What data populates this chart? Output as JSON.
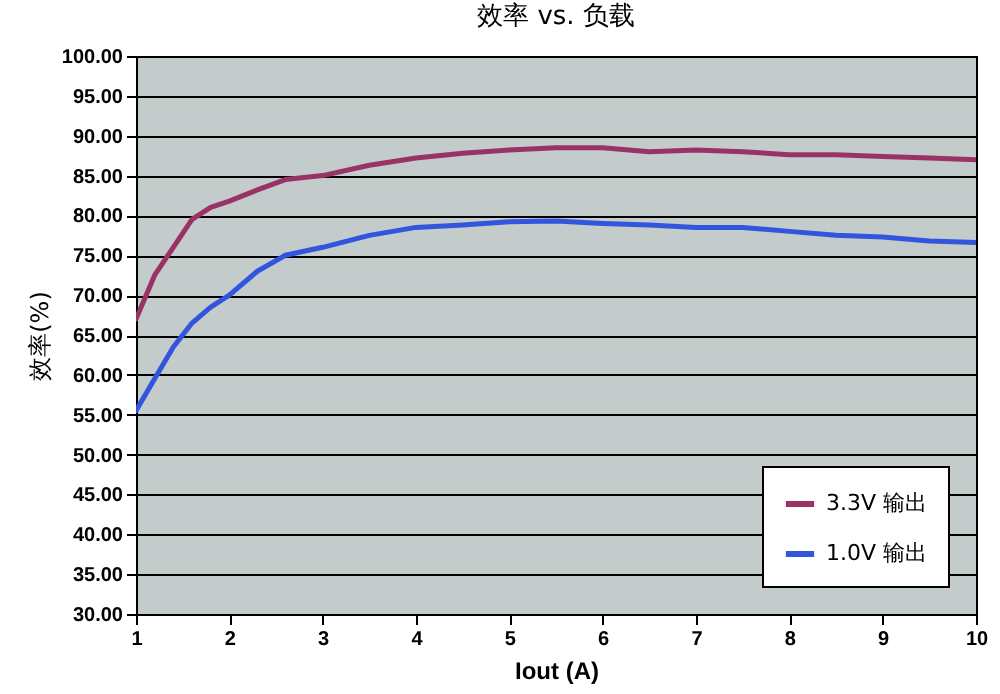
{
  "chart_data": {
    "type": "line",
    "title": "效率 vs. 负载",
    "xlabel": "Iout (A)",
    "ylabel": "效率(%)",
    "xlim": [
      1,
      10
    ],
    "xticks": [
      1,
      2,
      3,
      4,
      5,
      6,
      7,
      8,
      9,
      10
    ],
    "ylim": [
      30,
      100
    ],
    "yticks": [
      {
        "value": 30,
        "label": "30.00"
      },
      {
        "value": 35,
        "label": "35.00"
      },
      {
        "value": 40,
        "label": "40.00"
      },
      {
        "value": 45,
        "label": "45.00"
      },
      {
        "value": 50,
        "label": "50.00"
      },
      {
        "value": 55,
        "label": "55.00"
      },
      {
        "value": 60,
        "label": "60.00"
      },
      {
        "value": 65,
        "label": "65.00"
      },
      {
        "value": 70,
        "label": "70.00"
      },
      {
        "value": 75,
        "label": "75.00"
      },
      {
        "value": 80,
        "label": "80.00"
      },
      {
        "value": 85,
        "label": "85.00"
      },
      {
        "value": 90,
        "label": "90.00"
      },
      {
        "value": 95,
        "label": "95.00"
      },
      {
        "value": 100,
        "label": "100.00"
      }
    ],
    "grid": "y",
    "legend": "bottom right",
    "marker": "none",
    "line_style": "solid",
    "x": [
      1,
      1.2,
      1.4,
      1.6,
      1.8,
      2,
      2.3,
      2.6,
      3,
      3.5,
      4,
      4.5,
      5,
      5.5,
      6,
      6.5,
      7,
      7.5,
      8,
      8.5,
      9,
      9.5,
      10
    ],
    "series": [
      {
        "name": "3.3V 输出",
        "color": "#993366",
        "values": [
          67,
          72.5,
          76,
          79.5,
          81,
          81.8,
          83.2,
          84.5,
          85,
          86.3,
          87.2,
          87.8,
          88.2,
          88.5,
          88.5,
          88,
          88.2,
          88,
          87.6,
          87.6,
          87.4,
          87.2,
          87
        ]
      },
      {
        "name": "1.0V 输出",
        "color": "#3355dd",
        "values": [
          55.5,
          59.5,
          63.5,
          66.5,
          68.5,
          70,
          73,
          75,
          76,
          77.5,
          78.5,
          78.8,
          79.2,
          79.3,
          79,
          78.8,
          78.5,
          78.5,
          78,
          77.5,
          77.3,
          76.8,
          76.6
        ]
      }
    ]
  }
}
